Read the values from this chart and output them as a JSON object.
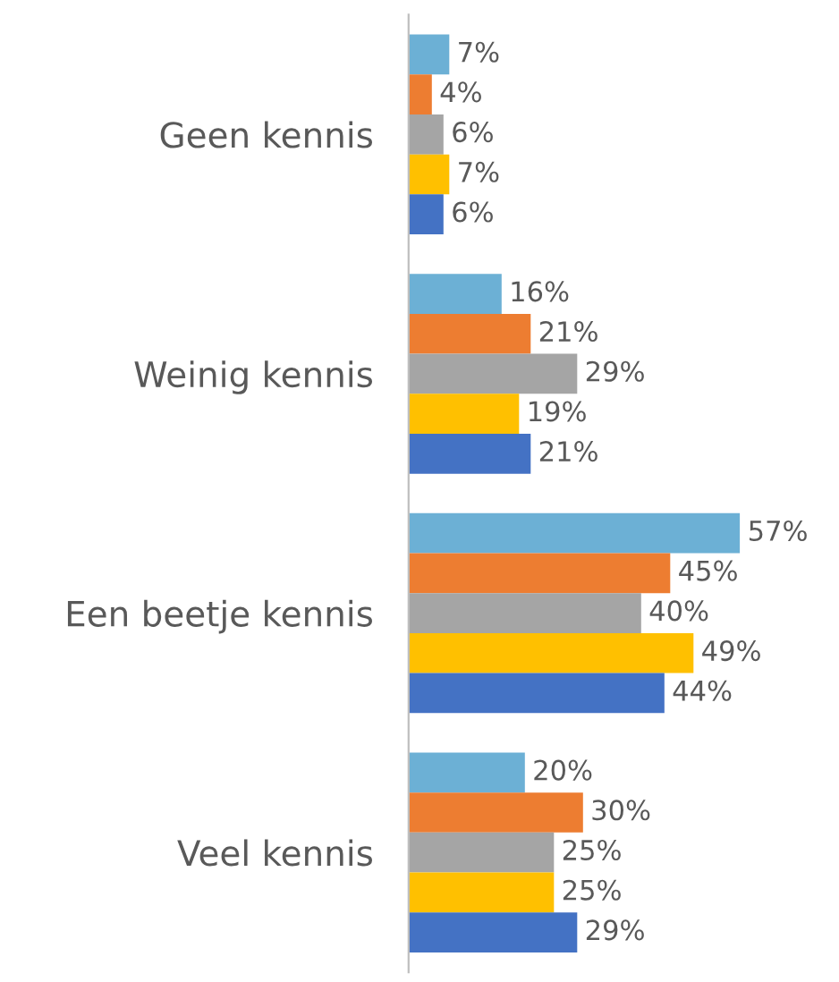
{
  "chart_data": {
    "type": "bar",
    "orientation": "horizontal",
    "categories": [
      "Geen kennis",
      "Weinig kennis",
      "Een beetje kennis",
      "Veel kennis"
    ],
    "series": [
      {
        "color": "#6cb0d5",
        "values": [
          7,
          16,
          57,
          20
        ],
        "value_labels": [
          "7%",
          "16%",
          "57%",
          "20%"
        ]
      },
      {
        "color": "#ed7d31",
        "values": [
          4,
          21,
          45,
          30
        ],
        "value_labels": [
          "4%",
          "21%",
          "45%",
          "30%"
        ]
      },
      {
        "color": "#a5a5a5",
        "values": [
          6,
          29,
          40,
          25
        ],
        "value_labels": [
          "6%",
          "29%",
          "40%",
          "25%"
        ]
      },
      {
        "color": "#ffc000",
        "values": [
          7,
          19,
          49,
          25
        ],
        "value_labels": [
          "7%",
          "19%",
          "49%",
          "25%"
        ]
      },
      {
        "color": "#4472c4",
        "values": [
          6,
          21,
          44,
          29
        ],
        "value_labels": [
          "6%",
          "21%",
          "44%",
          "29%"
        ]
      }
    ],
    "tick_labels": "y",
    "grid": false,
    "legend": false
  }
}
